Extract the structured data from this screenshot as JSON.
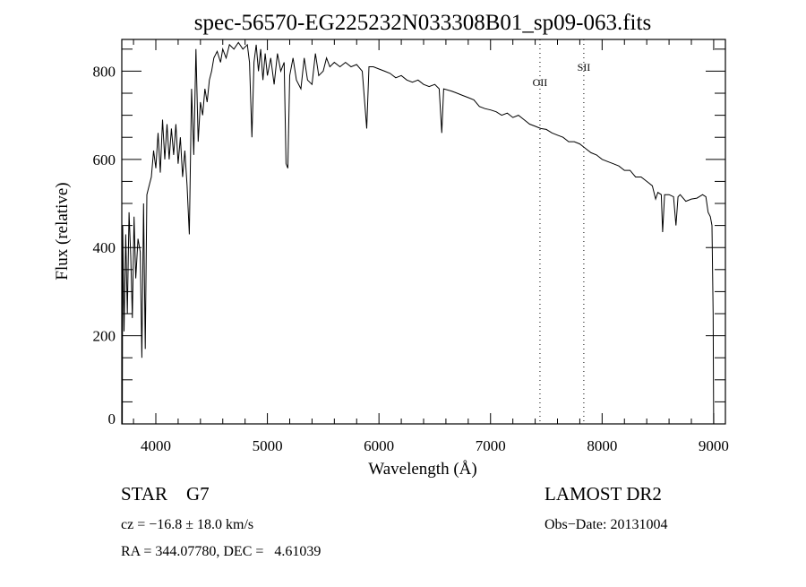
{
  "chart_data": {
    "type": "line",
    "title": "spec-56570-EG225232N033308B01_sp09-063.fits",
    "xlabel": "Wavelength (Å)",
    "ylabel": "Flux (relative)",
    "xlim": [
      3695,
      9105
    ],
    "ylim": [
      0,
      872
    ],
    "xticks": [
      4000,
      5000,
      6000,
      7000,
      8000,
      9000
    ],
    "yticks": [
      0,
      200,
      400,
      600,
      800
    ],
    "grid": false,
    "line_markers": [
      {
        "label": "OII",
        "x": 7443
      },
      {
        "label": "SII",
        "x": 7836
      }
    ],
    "series": [
      {
        "name": "spectrum",
        "points": [
          [
            3700,
            0
          ],
          [
            3703,
            450
          ],
          [
            3715,
            210
          ],
          [
            3730,
            430
          ],
          [
            3745,
            250
          ],
          [
            3760,
            480
          ],
          [
            3775,
            380
          ],
          [
            3790,
            240
          ],
          [
            3805,
            470
          ],
          [
            3820,
            330
          ],
          [
            3840,
            420
          ],
          [
            3860,
            390
          ],
          [
            3875,
            150
          ],
          [
            3890,
            500
          ],
          [
            3905,
            170
          ],
          [
            3920,
            520
          ],
          [
            3940,
            540
          ],
          [
            3960,
            560
          ],
          [
            3980,
            620
          ],
          [
            4000,
            580
          ],
          [
            4020,
            660
          ],
          [
            4040,
            570
          ],
          [
            4060,
            690
          ],
          [
            4080,
            600
          ],
          [
            4100,
            680
          ],
          [
            4120,
            600
          ],
          [
            4140,
            670
          ],
          [
            4160,
            610
          ],
          [
            4180,
            680
          ],
          [
            4200,
            590
          ],
          [
            4220,
            650
          ],
          [
            4240,
            560
          ],
          [
            4260,
            620
          ],
          [
            4280,
            540
          ],
          [
            4300,
            430
          ],
          [
            4320,
            760
          ],
          [
            4340,
            610
          ],
          [
            4360,
            850
          ],
          [
            4380,
            640
          ],
          [
            4400,
            730
          ],
          [
            4420,
            700
          ],
          [
            4440,
            760
          ],
          [
            4460,
            730
          ],
          [
            4480,
            780
          ],
          [
            4500,
            800
          ],
          [
            4520,
            830
          ],
          [
            4550,
            845
          ],
          [
            4580,
            820
          ],
          [
            4600,
            850
          ],
          [
            4630,
            830
          ],
          [
            4660,
            860
          ],
          [
            4700,
            850
          ],
          [
            4740,
            865
          ],
          [
            4780,
            850
          ],
          [
            4820,
            860
          ],
          [
            4840,
            820
          ],
          [
            4861,
            650
          ],
          [
            4880,
            820
          ],
          [
            4900,
            860
          ],
          [
            4920,
            800
          ],
          [
            4940,
            850
          ],
          [
            4960,
            780
          ],
          [
            4980,
            840
          ],
          [
            5000,
            790
          ],
          [
            5030,
            830
          ],
          [
            5060,
            770
          ],
          [
            5090,
            840
          ],
          [
            5120,
            800
          ],
          [
            5150,
            820
          ],
          [
            5167,
            590
          ],
          [
            5183,
            580
          ],
          [
            5200,
            790
          ],
          [
            5230,
            830
          ],
          [
            5260,
            780
          ],
          [
            5300,
            760
          ],
          [
            5330,
            830
          ],
          [
            5360,
            780
          ],
          [
            5400,
            770
          ],
          [
            5430,
            840
          ],
          [
            5460,
            790
          ],
          [
            5500,
            800
          ],
          [
            5530,
            830
          ],
          [
            5560,
            810
          ],
          [
            5600,
            820
          ],
          [
            5650,
            810
          ],
          [
            5700,
            820
          ],
          [
            5750,
            810
          ],
          [
            5800,
            815
          ],
          [
            5850,
            800
          ],
          [
            5890,
            670
          ],
          [
            5910,
            810
          ],
          [
            5950,
            810
          ],
          [
            6000,
            805
          ],
          [
            6050,
            800
          ],
          [
            6100,
            795
          ],
          [
            6150,
            785
          ],
          [
            6200,
            790
          ],
          [
            6250,
            780
          ],
          [
            6300,
            775
          ],
          [
            6350,
            780
          ],
          [
            6400,
            770
          ],
          [
            6450,
            765
          ],
          [
            6500,
            770
          ],
          [
            6540,
            760
          ],
          [
            6563,
            660
          ],
          [
            6580,
            760
          ],
          [
            6650,
            755
          ],
          [
            6700,
            750
          ],
          [
            6750,
            745
          ],
          [
            6800,
            740
          ],
          [
            6850,
            735
          ],
          [
            6900,
            720
          ],
          [
            6950,
            715
          ],
          [
            7000,
            712
          ],
          [
            7050,
            708
          ],
          [
            7100,
            700
          ],
          [
            7150,
            705
          ],
          [
            7200,
            695
          ],
          [
            7250,
            700
          ],
          [
            7300,
            690
          ],
          [
            7350,
            680
          ],
          [
            7400,
            675
          ],
          [
            7450,
            670
          ],
          [
            7500,
            668
          ],
          [
            7550,
            660
          ],
          [
            7600,
            655
          ],
          [
            7650,
            650
          ],
          [
            7700,
            640
          ],
          [
            7750,
            640
          ],
          [
            7800,
            635
          ],
          [
            7850,
            625
          ],
          [
            7900,
            615
          ],
          [
            7950,
            610
          ],
          [
            8000,
            600
          ],
          [
            8050,
            595
          ],
          [
            8100,
            590
          ],
          [
            8150,
            585
          ],
          [
            8200,
            575
          ],
          [
            8250,
            575
          ],
          [
            8300,
            560
          ],
          [
            8350,
            560
          ],
          [
            8400,
            550
          ],
          [
            8450,
            540
          ],
          [
            8480,
            510
          ],
          [
            8500,
            525
          ],
          [
            8530,
            520
          ],
          [
            8542,
            435
          ],
          [
            8560,
            520
          ],
          [
            8600,
            520
          ],
          [
            8640,
            515
          ],
          [
            8662,
            450
          ],
          [
            8680,
            515
          ],
          [
            8700,
            520
          ],
          [
            8750,
            505
          ],
          [
            8800,
            510
          ],
          [
            8850,
            512
          ],
          [
            8900,
            520
          ],
          [
            8930,
            515
          ],
          [
            8950,
            480
          ],
          [
            8970,
            470
          ],
          [
            8985,
            450
          ],
          [
            8995,
            250
          ],
          [
            9000,
            0
          ]
        ]
      }
    ]
  },
  "info": {
    "class": "STAR",
    "subclass": "G7",
    "survey": "LAMOST DR2",
    "redshift": "cz = −16.8 ± 18.0 km/s",
    "obs_date": "Obs−Date: 20131004",
    "coords": "RA = 344.07780, DEC =   4.61039"
  }
}
